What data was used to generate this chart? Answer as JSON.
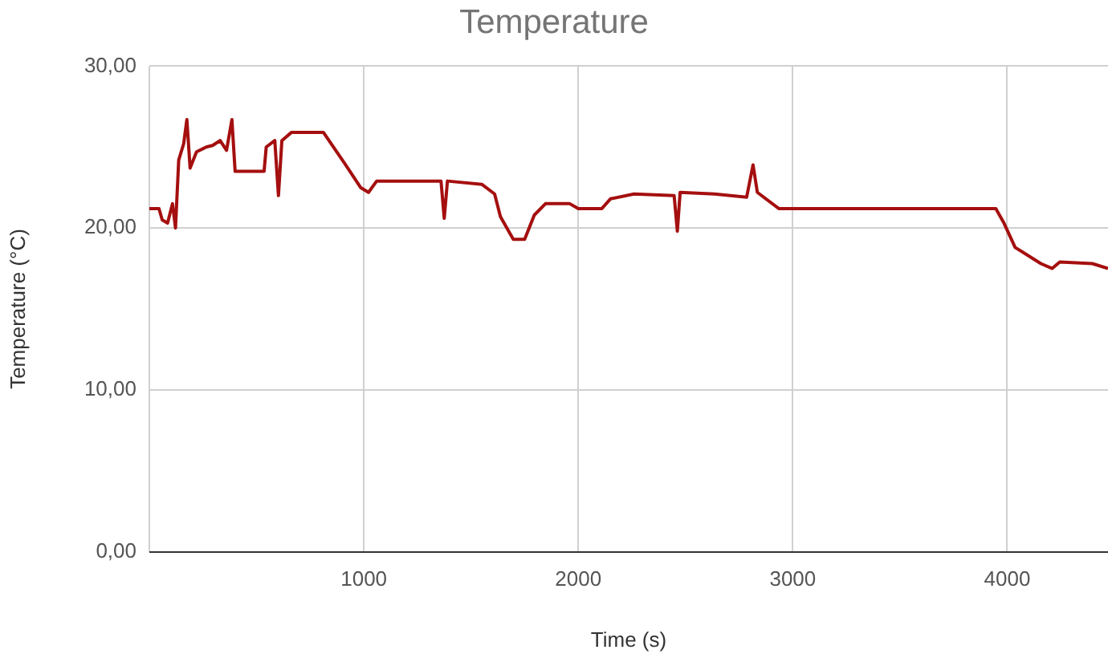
{
  "chart_data": {
    "type": "line",
    "title": "Temperature",
    "xlabel": "Time (s)",
    "ylabel": "Temperature (°C)",
    "x": [
      0,
      45,
      60,
      85,
      108,
      122,
      137,
      160,
      175,
      190,
      220,
      265,
      295,
      330,
      360,
      385,
      400,
      535,
      545,
      585,
      602,
      618,
      662,
      812,
      910,
      985,
      1022,
      1060,
      1360,
      1375,
      1390,
      1550,
      1610,
      1637,
      1697,
      1750,
      1795,
      1847,
      1960,
      2000,
      2110,
      2150,
      2260,
      2447,
      2462,
      2475,
      2635,
      2785,
      2815,
      2835,
      2935,
      3200,
      3947,
      3985,
      4037,
      4157,
      4210,
      4245,
      4397,
      4470
    ],
    "series": [
      {
        "color": "#a50f0f",
        "values": [
          21.2,
          21.2,
          20.5,
          20.3,
          21.5,
          20.0,
          24.2,
          25.2,
          26.7,
          23.7,
          24.7,
          25.0,
          25.1,
          25.4,
          24.8,
          26.7,
          23.5,
          23.5,
          25.0,
          25.4,
          22.0,
          25.4,
          25.9,
          25.9,
          24.0,
          22.5,
          22.2,
          22.9,
          22.9,
          20.6,
          22.9,
          22.7,
          22.1,
          20.7,
          19.3,
          19.3,
          20.8,
          21.5,
          21.5,
          21.2,
          21.2,
          21.8,
          22.1,
          22.0,
          19.8,
          22.2,
          22.1,
          21.9,
          23.9,
          22.2,
          21.2,
          21.2,
          21.2,
          20.3,
          18.8,
          17.8,
          17.5,
          17.9,
          17.8,
          17.5
        ]
      }
    ],
    "xlim": [
      0,
      4470
    ],
    "xticks": [
      {
        "value": 0,
        "label": null
      },
      1000,
      2000,
      3000,
      4000
    ],
    "ylim": [
      0,
      30
    ],
    "yticks": [
      {
        "value": 0,
        "label": "0,00"
      },
      {
        "value": 10,
        "label": "10,00"
      },
      {
        "value": 20,
        "label": "20,00"
      },
      {
        "value": 30,
        "label": "30,00"
      }
    ],
    "grid": true,
    "legend": false,
    "marker": "none",
    "line_style": "solid"
  }
}
